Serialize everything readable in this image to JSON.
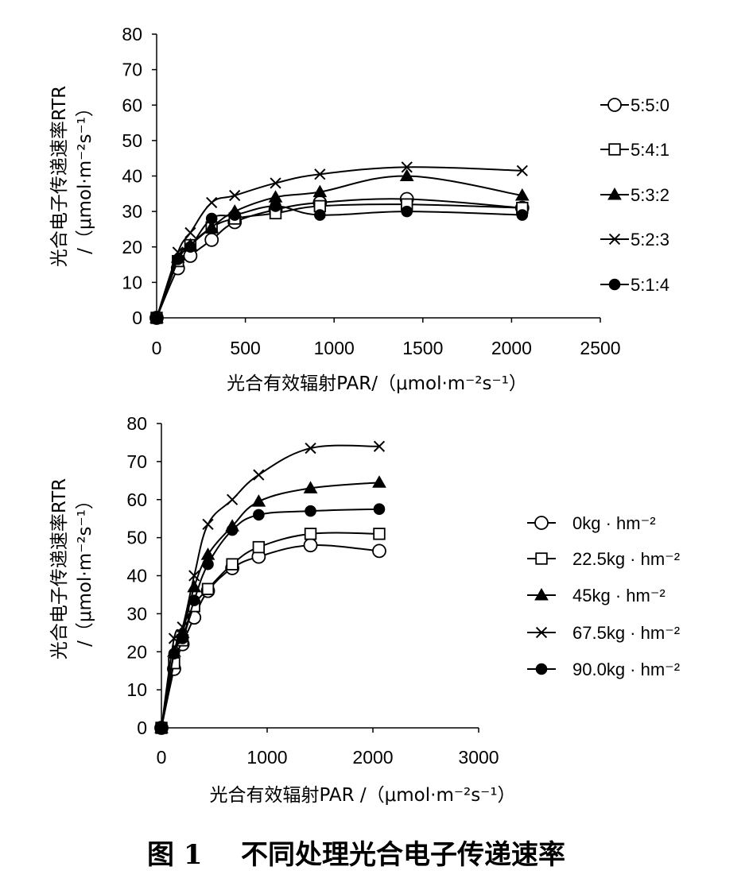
{
  "caption": {
    "label": "图 1",
    "text": "不同处理光合电子传递速率"
  },
  "chart_data": [
    {
      "type": "line",
      "xlabel": "光合有效辐射PAR/（μmol·m⁻²s⁻¹）",
      "ylabel_line1": "光合电子传递速率RTR",
      "ylabel_line2": "/（μmol·m⁻²s⁻¹）",
      "xlim": [
        0,
        2500
      ],
      "ylim": [
        0,
        80
      ],
      "xticks": [
        "0",
        "500",
        "1000",
        "1500",
        "2000",
        "2500"
      ],
      "yticks": [
        "0",
        "10",
        "20",
        "30",
        "40",
        "50",
        "60",
        "70",
        "80"
      ],
      "x": [
        0,
        120,
        190,
        310,
        440,
        670,
        920,
        1410,
        2060
      ],
      "legend": "right",
      "grid": false,
      "series": [
        {
          "name": "5:5:0",
          "marker": "open-circle",
          "values": [
            0,
            14,
            17.5,
            22,
            27,
            30.5,
            32.5,
            33.5,
            31
          ]
        },
        {
          "name": "5:4:1",
          "marker": "open-square",
          "values": [
            0,
            16,
            20.5,
            25.5,
            28,
            29.5,
            31.5,
            32,
            31
          ]
        },
        {
          "name": "5:3:2",
          "marker": "filled-triangle",
          "values": [
            0,
            17,
            20.5,
            25.5,
            30,
            34,
            35.5,
            40,
            34.5
          ]
        },
        {
          "name": "5:2:3",
          "marker": "x",
          "values": [
            0,
            18.5,
            24,
            32.5,
            34.5,
            38,
            40.5,
            42.5,
            41.5
          ]
        },
        {
          "name": "5:1:4",
          "marker": "filled-circle",
          "values": [
            0,
            16.5,
            20,
            28,
            29,
            31.5,
            29,
            30,
            29
          ]
        }
      ]
    },
    {
      "type": "line",
      "xlabel": "光合有效辐射PAR /（μmol·m⁻²s⁻¹）",
      "ylabel_line1": "光合电子传递速率RTR",
      "ylabel_line2": "/（μmol·m⁻²s⁻¹）",
      "xlim": [
        0,
        3000
      ],
      "ylim": [
        0,
        80
      ],
      "xticks": [
        "0",
        "1000",
        "2000",
        "3000"
      ],
      "yticks": [
        "0",
        "10",
        "20",
        "30",
        "40",
        "50",
        "60",
        "70",
        "80"
      ],
      "x": [
        0,
        120,
        200,
        310,
        440,
        670,
        920,
        1410,
        2060
      ],
      "legend": "right",
      "grid": false,
      "series": [
        {
          "name": "0kg · hm⁻²",
          "marker": "open-circle",
          "values": [
            0,
            15.5,
            22,
            29,
            36,
            42,
            45,
            48,
            46.5
          ]
        },
        {
          "name": "22.5kg · hm⁻²",
          "marker": "open-square",
          "values": [
            0,
            17,
            23,
            32,
            36.5,
            43,
            47.5,
            51,
            51
          ]
        },
        {
          "name": "45kg · hm⁻²",
          "marker": "filled-triangle",
          "values": [
            0,
            20,
            25,
            37,
            45.5,
            53,
            59.5,
            63,
            64.5
          ]
        },
        {
          "name": "67.5kg · hm⁻²",
          "marker": "x",
          "values": [
            0,
            23.5,
            26.5,
            40,
            53.5,
            60,
            66.5,
            73.5,
            74
          ]
        },
        {
          "name": "90.0kg · hm⁻²",
          "marker": "filled-circle",
          "values": [
            0,
            19.5,
            23.5,
            33.5,
            43,
            52,
            56,
            57,
            57.5
          ]
        }
      ]
    }
  ]
}
